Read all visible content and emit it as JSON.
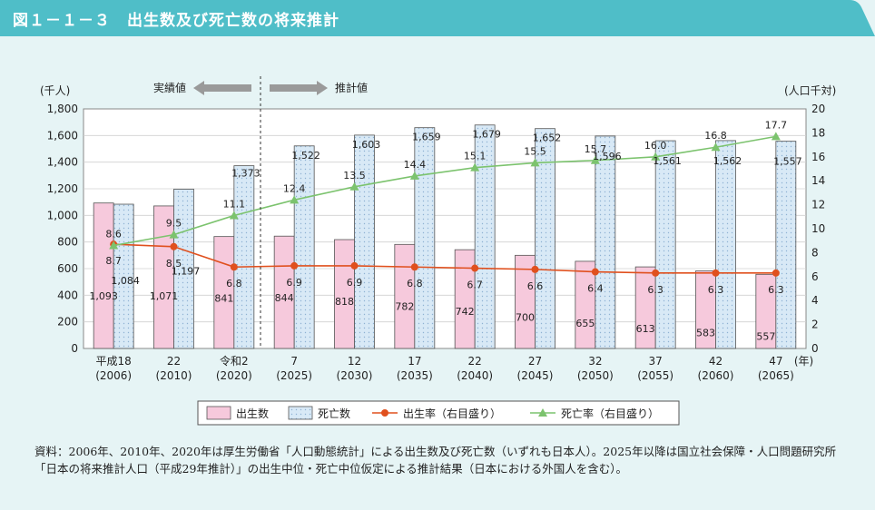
{
  "header": {
    "title": "図１－１－３　出生数及び死亡数の将来推計",
    "color": "#4fbec8"
  },
  "chart_data": {
    "type": "bar",
    "categories": [
      "平成18",
      "22",
      "令和2",
      "7",
      "12",
      "17",
      "22",
      "27",
      "32",
      "37",
      "42",
      "47"
    ],
    "years": [
      "(2006)",
      "(2010)",
      "(2020)",
      "(2025)",
      "(2030)",
      "(2035)",
      "(2040)",
      "(2045)",
      "(2050)",
      "(2055)",
      "(2060)",
      "(2065)"
    ],
    "x_unit": "(年)",
    "y_left": {
      "unit": "(千人)",
      "range": [
        0,
        1800
      ],
      "ticks": [
        "0",
        "200",
        "400",
        "600",
        "800",
        "1,000",
        "1,200",
        "1,400",
        "1,600",
        "1,800"
      ]
    },
    "y_right": {
      "unit": "(人口千対)",
      "range": [
        0,
        20
      ],
      "ticks": [
        "0",
        "2",
        "4",
        "6",
        "8",
        "10",
        "12",
        "14",
        "16",
        "18",
        "20"
      ]
    },
    "series": [
      {
        "name": "出生数",
        "kind": "bar",
        "color": "#f6c9dc",
        "values": [
          1093,
          1071,
          841,
          844,
          818,
          782,
          742,
          700,
          655,
          613,
          583,
          557
        ],
        "labels": [
          "1,093",
          "1,071",
          "841",
          "844",
          "818",
          "782",
          "742",
          "700",
          "655",
          "613",
          "583",
          "557"
        ]
      },
      {
        "name": "死亡数",
        "kind": "bar",
        "color": "#d8e9f6",
        "values": [
          1084,
          1197,
          1373,
          1522,
          1603,
          1659,
          1679,
          1652,
          1596,
          1561,
          1562,
          1557
        ],
        "labels": [
          "1,084",
          "1,197",
          "1,373",
          "1,522",
          "1,603",
          "1,659",
          "1,679",
          "1,652",
          "1,596",
          "1,561",
          "1,562",
          "1,557"
        ]
      },
      {
        "name": "出生率（右目盛り）",
        "kind": "line",
        "color": "#e0501e",
        "values": [
          8.7,
          8.5,
          6.8,
          6.9,
          6.9,
          6.8,
          6.7,
          6.6,
          6.4,
          6.3,
          6.3,
          6.3
        ],
        "labels": [
          "8.7",
          "8.5",
          "6.8",
          "6.9",
          "6.9",
          "6.8",
          "6.7",
          "6.6",
          "6.4",
          "6.3",
          "6.3",
          "6.3"
        ]
      },
      {
        "name": "死亡率（右目盛り）",
        "kind": "line",
        "color": "#7cc36e",
        "values": [
          8.6,
          9.5,
          11.1,
          12.4,
          13.5,
          14.4,
          15.1,
          15.5,
          15.7,
          16.0,
          16.8,
          17.7
        ],
        "labels": [
          "8.6",
          "9.5",
          "11.1",
          "12.4",
          "13.5",
          "14.4",
          "15.1",
          "15.5",
          "15.7",
          "16.0",
          "16.8",
          "17.7"
        ]
      }
    ],
    "annotations": {
      "actual": "実績値",
      "projected": "推計値"
    },
    "legend_position": "bottom"
  },
  "source_text": "資料：2006年、2010年、2020年は厚生労働省「人口動態統計」による出生数及び死亡数（いずれも日本人）。2025年以降は国立社会保障・人口問題研究所「日本の将来推計人口（平成29年推計）」の出生中位・死亡中位仮定による推計結果（日本における外国人を含む）。"
}
